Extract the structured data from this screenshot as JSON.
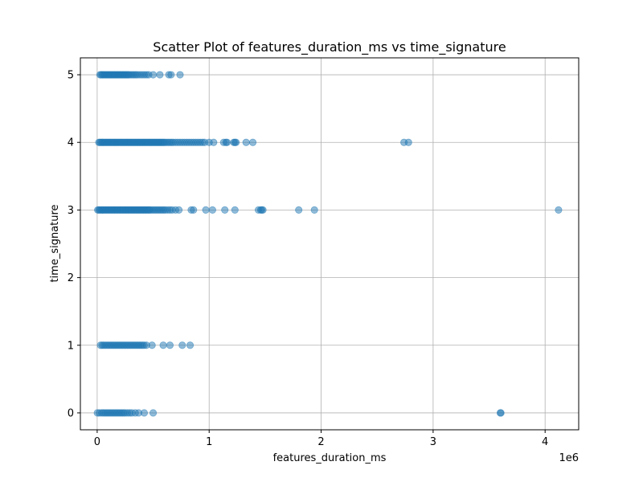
{
  "chart_data": {
    "type": "scatter",
    "title": "Scatter Plot of features_duration_ms vs time_signature",
    "xlabel": "features_duration_ms",
    "ylabel": "time_signature",
    "x_offset_label": "1e6",
    "xlim": [
      -150000,
      4300000
    ],
    "ylim": [
      -0.25,
      5.25
    ],
    "x_ticks": [
      0,
      1000000,
      2000000,
      3000000,
      4000000
    ],
    "x_tick_labels": [
      "0",
      "1",
      "2",
      "3",
      "4"
    ],
    "y_ticks": [
      0,
      1,
      2,
      3,
      4,
      5
    ],
    "y_tick_labels": [
      "0",
      "1",
      "2",
      "3",
      "4",
      "5"
    ],
    "grid": true,
    "marker_color": "#1f77b4",
    "marker_alpha": 0.5,
    "points": [
      {
        "y": 5,
        "x": [
          25000,
          35000,
          45000,
          55000,
          65000,
          75000,
          85000,
          95000,
          105000,
          115000,
          125000,
          135000,
          145000,
          155000,
          165000,
          175000,
          185000,
          195000,
          205000,
          215000,
          225000,
          235000,
          245000,
          255000,
          265000,
          275000,
          285000,
          300000,
          315000,
          330000,
          345000,
          360000,
          380000,
          400000,
          420000,
          440000,
          460000,
          500000,
          560000,
          640000,
          660000,
          740000
        ]
      },
      {
        "y": 4,
        "x": [
          15000,
          25000,
          35000,
          45000,
          55000,
          65000,
          75000,
          85000,
          95000,
          105000,
          115000,
          125000,
          135000,
          145000,
          155000,
          165000,
          175000,
          185000,
          195000,
          205000,
          215000,
          225000,
          235000,
          245000,
          255000,
          265000,
          275000,
          285000,
          295000,
          305000,
          315000,
          325000,
          335000,
          345000,
          355000,
          365000,
          375000,
          385000,
          395000,
          405000,
          415000,
          425000,
          435000,
          445000,
          455000,
          465000,
          475000,
          485000,
          495000,
          505000,
          515000,
          525000,
          535000,
          545000,
          555000,
          565000,
          575000,
          585000,
          595000,
          605000,
          620000,
          635000,
          650000,
          665000,
          680000,
          700000,
          720000,
          740000,
          760000,
          780000,
          800000,
          820000,
          840000,
          860000,
          880000,
          900000,
          920000,
          940000,
          960000,
          1000000,
          1040000,
          1130000,
          1150000,
          1160000,
          1220000,
          1230000,
          1240000,
          1330000,
          1390000,
          2740000,
          2780000
        ]
      },
      {
        "y": 3,
        "x": [
          5000,
          15000,
          25000,
          35000,
          45000,
          55000,
          65000,
          75000,
          85000,
          95000,
          105000,
          115000,
          125000,
          135000,
          145000,
          155000,
          165000,
          175000,
          185000,
          195000,
          205000,
          215000,
          225000,
          235000,
          245000,
          255000,
          265000,
          275000,
          285000,
          295000,
          305000,
          315000,
          325000,
          335000,
          345000,
          355000,
          365000,
          375000,
          385000,
          395000,
          405000,
          415000,
          425000,
          435000,
          445000,
          455000,
          465000,
          475000,
          490000,
          505000,
          520000,
          535000,
          550000,
          565000,
          580000,
          595000,
          610000,
          630000,
          650000,
          670000,
          700000,
          730000,
          840000,
          860000,
          970000,
          1030000,
          1140000,
          1230000,
          1440000,
          1460000,
          1470000,
          1480000,
          1800000,
          1940000,
          4120000
        ]
      },
      {
        "y": 1,
        "x": [
          30000,
          45000,
          60000,
          75000,
          90000,
          105000,
          120000,
          135000,
          150000,
          165000,
          180000,
          195000,
          210000,
          225000,
          240000,
          255000,
          270000,
          285000,
          300000,
          315000,
          330000,
          345000,
          360000,
          375000,
          390000,
          405000,
          420000,
          440000,
          490000,
          590000,
          650000,
          760000,
          830000
        ]
      },
      {
        "y": 0,
        "x": [
          2000,
          20000,
          40000,
          55000,
          70000,
          85000,
          100000,
          115000,
          130000,
          145000,
          160000,
          175000,
          190000,
          205000,
          220000,
          235000,
          250000,
          270000,
          290000,
          310000,
          340000,
          370000,
          420000,
          500000,
          3600000,
          3605000
        ]
      }
    ]
  }
}
